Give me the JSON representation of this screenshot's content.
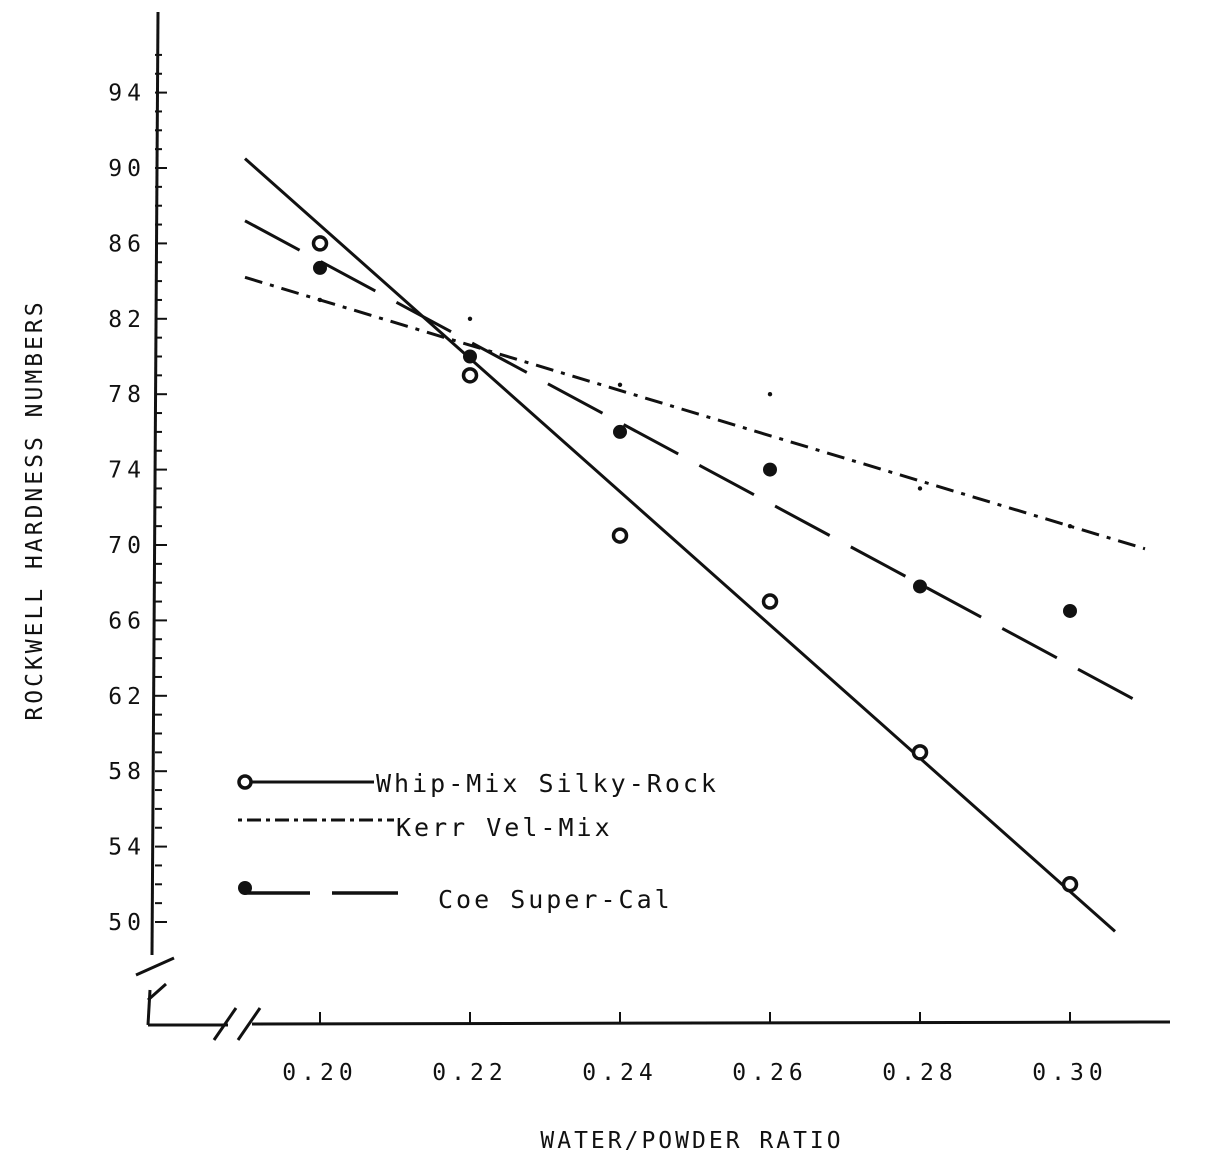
{
  "chart_data": {
    "type": "scatter",
    "title": "",
    "xlabel": "WATER/POWDER RATIO",
    "ylabel": "ROCKWELL HARDNESS NUMBERS",
    "x_ticks": [
      "0.20",
      "0.22",
      "0.24",
      "0.26",
      "0.28",
      "0.30"
    ],
    "y_ticks": [
      "50",
      "54",
      "58",
      "62",
      "66",
      "70",
      "74",
      "78",
      "82",
      "86",
      "90",
      "94"
    ],
    "xlim": [
      0.19,
      0.31
    ],
    "ylim": [
      50,
      94
    ],
    "axis_breaks": true,
    "grid": false,
    "legend_position": "bottom-left",
    "series": [
      {
        "name": "Whip-Mix Silky-Rock",
        "marker": "open-circle",
        "line_style": "solid",
        "color": "#111111",
        "points": [
          [
            0.2,
            86.0
          ],
          [
            0.22,
            79.0
          ],
          [
            0.24,
            70.5
          ],
          [
            0.26,
            67.0
          ],
          [
            0.28,
            59.0
          ],
          [
            0.3,
            52.0
          ]
        ],
        "fit_line": [
          [
            0.19,
            90.5
          ],
          [
            0.306,
            49.5
          ]
        ]
      },
      {
        "name": "Kerr Vel-Mix",
        "marker": "small-dot",
        "line_style": "dash-dot",
        "color": "#111111",
        "points": [
          [
            0.2,
            83.0
          ],
          [
            0.22,
            82.0
          ],
          [
            0.24,
            78.5
          ],
          [
            0.26,
            78.0
          ],
          [
            0.28,
            73.0
          ],
          [
            0.3,
            71.0
          ]
        ],
        "fit_line": [
          [
            0.19,
            84.2
          ],
          [
            0.31,
            69.8
          ]
        ]
      },
      {
        "name": "Coe Super-Cal",
        "marker": "filled-circle",
        "line_style": "long-dash",
        "color": "#111111",
        "points": [
          [
            0.2,
            84.7
          ],
          [
            0.22,
            80.0
          ],
          [
            0.24,
            76.0
          ],
          [
            0.26,
            74.0
          ],
          [
            0.28,
            67.8
          ],
          [
            0.3,
            66.5
          ]
        ],
        "fit_line": [
          [
            0.19,
            87.2
          ],
          [
            0.31,
            61.5
          ]
        ]
      }
    ]
  }
}
